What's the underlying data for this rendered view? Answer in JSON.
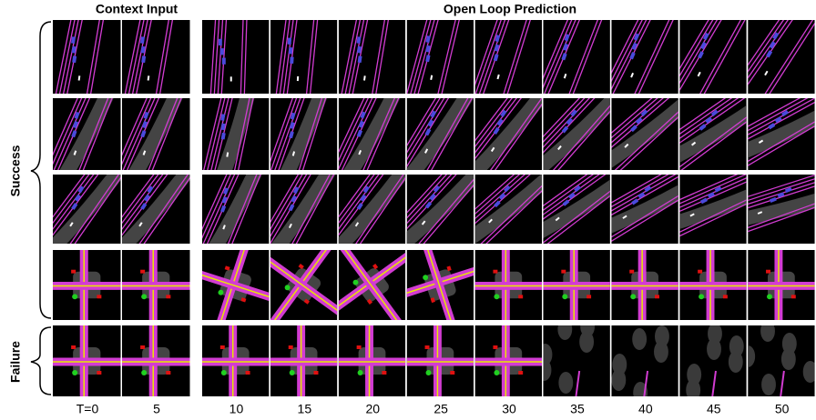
{
  "headers": {
    "context": "Context Input",
    "prediction": "Open Loop Prediction"
  },
  "groups": {
    "success": "Success",
    "failure": "Failure"
  },
  "timesteps": [
    "T=0",
    "5",
    "10",
    "15",
    "20",
    "25",
    "30",
    "35",
    "40",
    "45",
    "50"
  ]
}
